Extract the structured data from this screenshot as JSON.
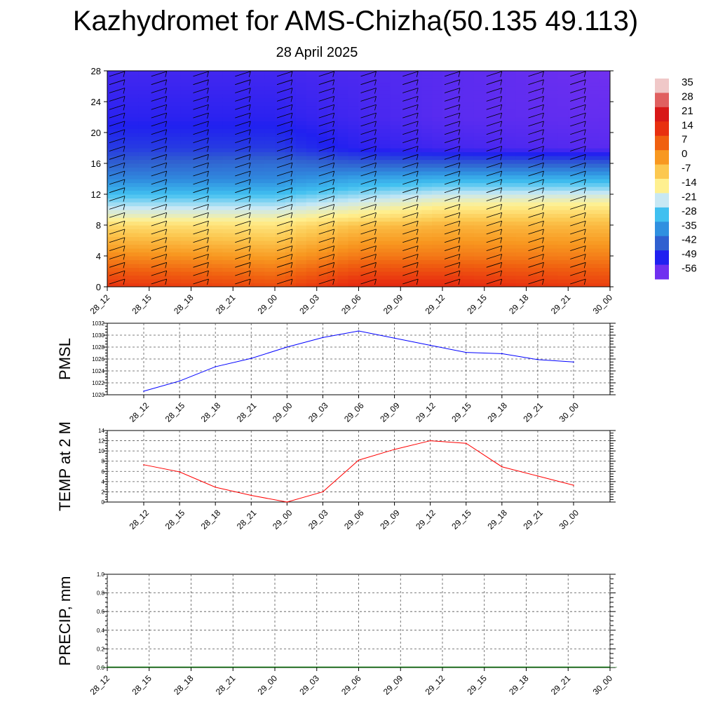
{
  "title": "Kazhydromet for AMS-Chizha(50.135 49.113)",
  "subtitle": "28 April 2025",
  "chart_data": [
    {
      "type": "heatmap",
      "ylim": [
        0,
        28
      ],
      "yticks": [
        "0",
        "4",
        "8",
        "12",
        "16",
        "20",
        "24",
        "28"
      ],
      "xticks": [
        "28_12",
        "28_15",
        "28_18",
        "28_21",
        "29_00",
        "29_03",
        "29_06",
        "29_09",
        "29_12",
        "29_15",
        "29_18",
        "29_21",
        "30_00"
      ],
      "colorbar": {
        "labels": [
          "35",
          "28",
          "21",
          "14",
          "7",
          "0",
          "-7",
          "-14",
          "-21",
          "-28",
          "-35",
          "-42",
          "-49",
          "-56"
        ],
        "colors": [
          "#f0c8c8",
          "#e06060",
          "#d81818",
          "#e83010",
          "#f06010",
          "#f89820",
          "#fcc850",
          "#fff090",
          "#c8e8f4",
          "#40c0f0",
          "#3090e0",
          "#3060d0",
          "#2020f0",
          "#7030f0"
        ]
      },
      "temperature_grid": {
        "heights": [
          0,
          4,
          8,
          9,
          11,
          14,
          16,
          18,
          22,
          28
        ],
        "times": [
          "28_12",
          "29_00",
          "29_06",
          "29_12",
          "30_00"
        ],
        "values": [
          [
            14,
            10,
            16,
            16,
            12
          ],
          [
            2,
            -1,
            4,
            4,
            3
          ],
          [
            -10,
            -12,
            -6,
            -4,
            -5
          ],
          [
            -16,
            -16,
            -12,
            -8,
            -8
          ],
          [
            -24,
            -24,
            -20,
            -16,
            -15
          ],
          [
            -36,
            -36,
            -32,
            -30,
            -30
          ],
          [
            -42,
            -40,
            -42,
            -42,
            -42
          ],
          [
            -46,
            -46,
            -50,
            -52,
            -54
          ],
          [
            -50,
            -50,
            -52,
            -54,
            -55
          ],
          [
            -52,
            -52,
            -53,
            -54,
            -56
          ]
        ]
      },
      "wind_barbs": true
    },
    {
      "type": "line",
      "ylabel": "PMSL",
      "ylim": [
        1020,
        1032
      ],
      "yticks": [
        "1020",
        "1022",
        "1024",
        "1026",
        "1028",
        "1030",
        "1032"
      ],
      "categories": [
        "28_12",
        "28_15",
        "28_18",
        "28_21",
        "29_00",
        "29_03",
        "29_06",
        "29_09",
        "29_12",
        "29_15",
        "29_18",
        "29_21",
        "30_00"
      ],
      "values": [
        1020.6,
        1022.3,
        1024.7,
        1026.1,
        1028.0,
        1029.6,
        1030.7,
        1029.5,
        1028.3,
        1027.1,
        1026.9,
        1025.9,
        1025.5
      ],
      "color": "#0000ff"
    },
    {
      "type": "line",
      "ylabel": "TEMP at 2 M",
      "ylim": [
        0,
        14
      ],
      "yticks": [
        "0",
        "2",
        "4",
        "6",
        "8",
        "10",
        "12",
        "14"
      ],
      "categories": [
        "28_12",
        "28_15",
        "28_18",
        "28_21",
        "29_00",
        "29_03",
        "29_06",
        "29_09",
        "29_12",
        "29_15",
        "29_18",
        "29_21",
        "30_00"
      ],
      "values": [
        7.3,
        5.9,
        2.9,
        1.3,
        0.0,
        2.0,
        8.2,
        10.3,
        12.0,
        11.5,
        6.9,
        5.1,
        3.3
      ],
      "color": "#ff0000"
    },
    {
      "type": "bar",
      "ylabel": "PRECIP, mm",
      "ylim": [
        0,
        1
      ],
      "yticks": [
        "0.0",
        "0.2",
        "0.4",
        "0.6",
        "0.8",
        "1.0"
      ],
      "categories": [
        "28_12",
        "28_15",
        "28_18",
        "28_21",
        "29_00",
        "29_03",
        "29_06",
        "29_09",
        "29_12",
        "29_15",
        "29_18",
        "29_21",
        "30_00"
      ],
      "values": [
        0,
        0,
        0,
        0,
        0,
        0,
        0,
        0,
        0,
        0,
        0,
        0,
        0
      ],
      "color": "#006400"
    }
  ]
}
